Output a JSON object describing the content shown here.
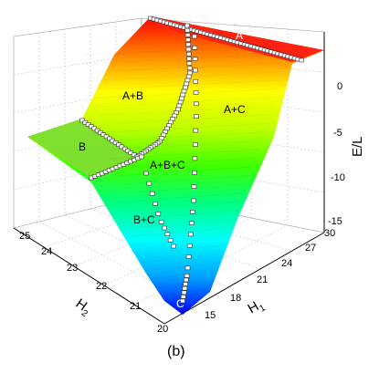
{
  "chart_data": {
    "type": "surface3d",
    "caption": "(b)",
    "axes": {
      "x": {
        "label_main": "H",
        "label_sub": "1",
        "ticks": [
          "15",
          "18",
          "21",
          "24",
          "27",
          "30"
        ],
        "range": [
          13,
          30
        ]
      },
      "y": {
        "label_main": "H",
        "label_sub": "2",
        "ticks": [
          "20",
          "21",
          "22",
          "23",
          "24",
          "25"
        ],
        "range": [
          20,
          25
        ]
      },
      "z": {
        "label": "E/L",
        "ticks": [
          "0",
          "-5",
          "-10",
          "-15"
        ],
        "range": [
          -18,
          4
        ]
      }
    },
    "regions": [
      {
        "id": "A",
        "label": "A",
        "color": "#ff2a1a"
      },
      {
        "id": "AB",
        "label": "A+B",
        "color": "#66e01f"
      },
      {
        "id": "AC",
        "label": "A+C",
        "color": "#b8f010"
      },
      {
        "id": "B",
        "label": "B",
        "color": "#77dc2a"
      },
      {
        "id": "ABC",
        "label": "A+B+C",
        "color": "#40d850"
      },
      {
        "id": "BC",
        "label": "B+C",
        "color": "#20c8a0"
      },
      {
        "id": "C",
        "label": "C",
        "color": "#1030e8"
      }
    ],
    "colormap": [
      "#0000ff",
      "#00a0ff",
      "#00ffff",
      "#00ff80",
      "#40ff00",
      "#c0ff00",
      "#ffff00",
      "#ff8000",
      "#ff0000"
    ],
    "grid": true
  }
}
